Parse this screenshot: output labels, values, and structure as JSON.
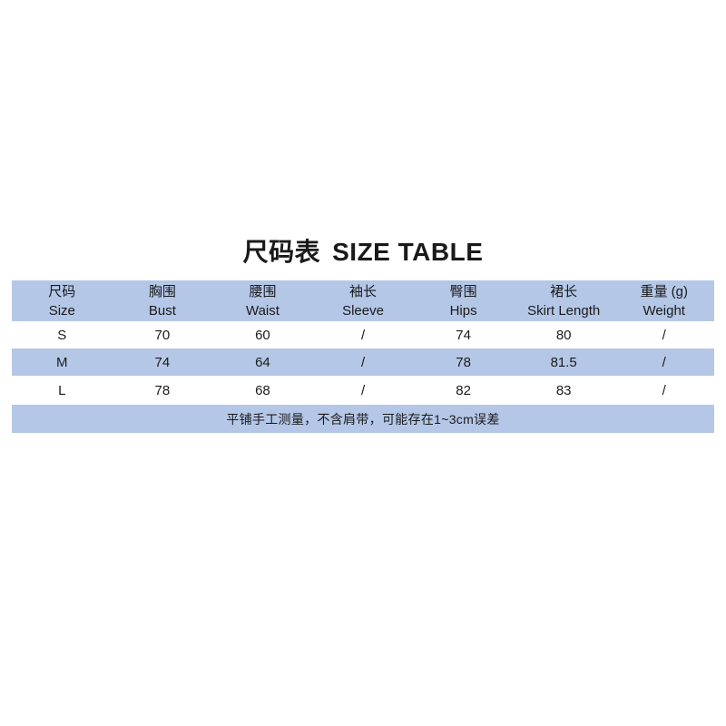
{
  "colors": {
    "band_blue": "#b4c7e7",
    "text": "#1a1a1a",
    "background": "#ffffff"
  },
  "chart_data": {
    "type": "table",
    "title_zh": "尺码表",
    "title_en": "SIZE TABLE",
    "columns": [
      {
        "zh": "尺码",
        "en": "Size"
      },
      {
        "zh": "胸围",
        "en": "Bust"
      },
      {
        "zh": "腰围",
        "en": "Waist"
      },
      {
        "zh": "袖长",
        "en": "Sleeve"
      },
      {
        "zh": "臀围",
        "en": "Hips"
      },
      {
        "zh": "裙长",
        "en": "Skirt Length"
      },
      {
        "zh": "重量 (g)",
        "en": "Weight"
      }
    ],
    "rows": [
      [
        "S",
        "70",
        "60",
        "/",
        "74",
        "80",
        "/"
      ],
      [
        "M",
        "74",
        "64",
        "/",
        "78",
        "81.5",
        "/"
      ],
      [
        "L",
        "78",
        "68",
        "/",
        "82",
        "83",
        "/"
      ]
    ],
    "row_striping": [
      "white",
      "blue",
      "white"
    ],
    "header_background": "blue",
    "note_background": "blue",
    "note": "平铺手工测量，不含肩带，可能存在1~3cm误差"
  }
}
